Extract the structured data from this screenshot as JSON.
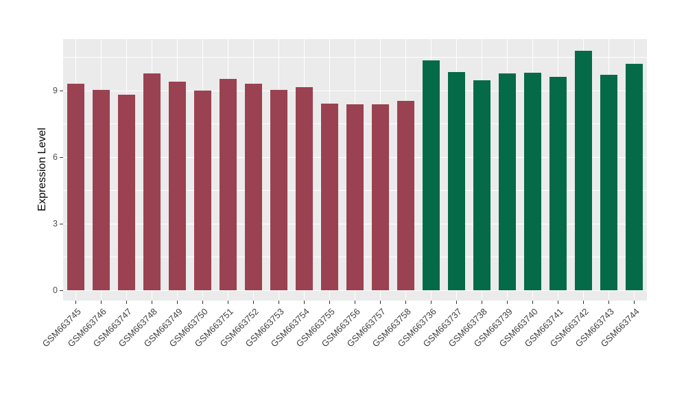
{
  "chart_data": {
    "type": "bar",
    "title": "",
    "xlabel": "",
    "ylabel": "Expression Level",
    "categories": [
      "GSM663745",
      "GSM663746",
      "GSM663747",
      "GSM663748",
      "GSM663749",
      "GSM663750",
      "GSM663751",
      "GSM663752",
      "GSM663753",
      "GSM663754",
      "GSM663755",
      "GSM663756",
      "GSM663757",
      "GSM663758",
      "GSM663736",
      "GSM663737",
      "GSM663738",
      "GSM663739",
      "GSM663740",
      "GSM663741",
      "GSM663742",
      "GSM663743",
      "GSM663744"
    ],
    "values": [
      9.32,
      9.04,
      8.82,
      9.79,
      9.41,
      9.02,
      9.54,
      9.32,
      9.04,
      9.16,
      8.43,
      8.39,
      8.4,
      8.54,
      10.36,
      9.85,
      9.48,
      9.77,
      9.81,
      9.63,
      10.81,
      9.72,
      10.21
    ],
    "bar_groups": [
      0,
      0,
      0,
      0,
      0,
      0,
      0,
      0,
      0,
      0,
      0,
      0,
      0,
      0,
      1,
      1,
      1,
      1,
      1,
      1,
      1,
      1,
      1
    ],
    "group_colors": [
      "#9A4251",
      "#046A48"
    ],
    "yticks": [
      0,
      3,
      6,
      9
    ],
    "ytick_labels": [
      "0",
      "3",
      "6",
      "9"
    ],
    "yticks_minor": [
      1.5,
      4.5,
      7.5,
      10.5
    ],
    "ylim": [
      -0.46,
      11.34
    ],
    "grid": "on",
    "legend": "none",
    "panel_bg": "#EBEBEB",
    "grid_color": "#FFFFFF",
    "x_label_rotation_deg": 45
  }
}
